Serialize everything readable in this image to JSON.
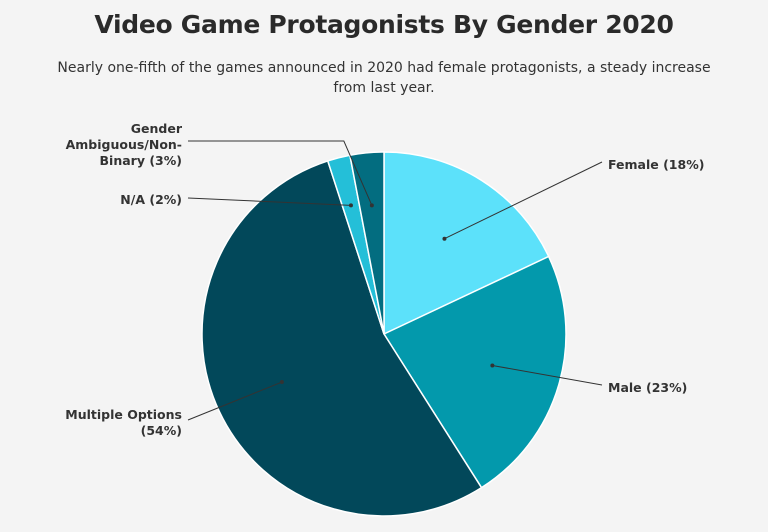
{
  "chart_data": {
    "type": "pie",
    "title": "Video Game Protagonists By Gender 2020",
    "subtitle": "Nearly one-fifth of the games announced in 2020 had female protagonists, a steady increase from last year.",
    "slices": [
      {
        "name": "Female",
        "label": "Female (18%)",
        "value": 18,
        "color": "#5ce1fa"
      },
      {
        "name": "Male",
        "label": "Male (23%)",
        "value": 23,
        "color": "#0399ac"
      },
      {
        "name": "Multiple Options",
        "label": "Multiple Options (54%)",
        "value": 54,
        "color": "#02485a"
      },
      {
        "name": "N/A",
        "label": "N/A (2%)",
        "value": 2,
        "color": "#24bfd8"
      },
      {
        "name": "Gender Ambiguous/Non-Binary",
        "label": "Gender Ambiguous/Non-Binary (3%)",
        "value": 3,
        "color": "#036d80"
      }
    ],
    "label_lines": {
      "Female": [
        "Female (18%)"
      ],
      "Male": [
        "Male (23%)"
      ],
      "Multiple Options": [
        "Multiple Options",
        "(54%)"
      ],
      "N/A": [
        "N/A (2%)"
      ],
      "Gender Ambiguous/Non-Binary": [
        "Gender",
        "Ambiguous/Non-",
        "Binary (3%)"
      ]
    },
    "legend": "none",
    "grid": false
  }
}
